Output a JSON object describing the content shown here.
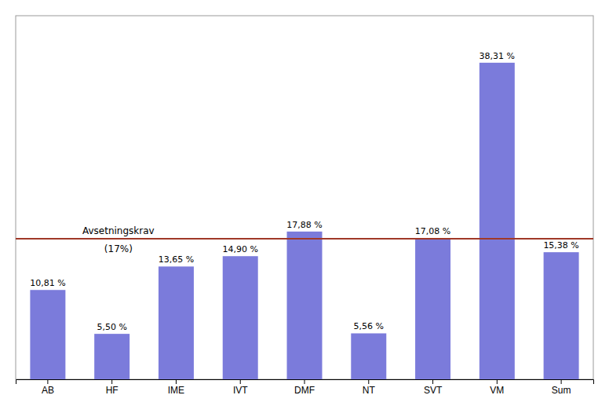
{
  "chart_data": {
    "type": "bar",
    "categories": [
      "AB",
      "HF",
      "IME",
      "IVT",
      "DMF",
      "NT",
      "SVT",
      "VM",
      "Sum"
    ],
    "values": [
      10.81,
      5.5,
      13.65,
      14.9,
      17.88,
      5.56,
      17.08,
      38.31,
      15.38
    ],
    "value_labels": [
      "10,81 %",
      "5,50 %",
      "13,65 %",
      "14,90 %",
      "17,88 %",
      "5,56 %",
      "17,08 %",
      "38,31 %",
      "15,38 %"
    ],
    "color": "#7b7bdb",
    "ylim": [
      0,
      44
    ],
    "tick_labels": "x",
    "data_labels": true,
    "grid": false,
    "reference_line": {
      "value": 17.0,
      "color": "#a03828",
      "labels": [
        "Avsetningskrav",
        "(17%)"
      ]
    }
  }
}
